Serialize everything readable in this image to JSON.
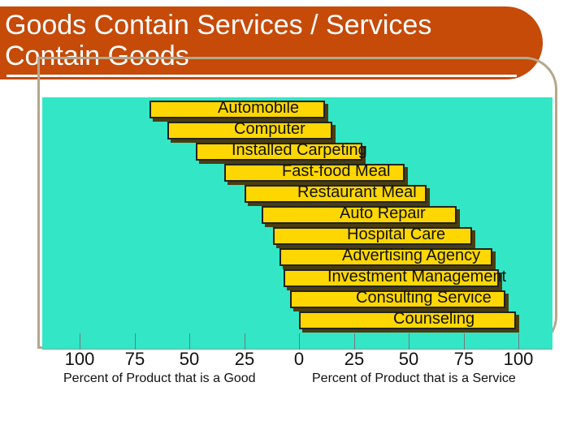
{
  "title": {
    "line1": "Goods Contain Services / Services",
    "line2": "Contain Goods"
  },
  "products": [
    {
      "label": "Automobile",
      "service_start": 68,
      "service_end": 12
    },
    {
      "label": "Computer",
      "service_start": 60,
      "service_end": 15
    },
    {
      "label": "Installed Carpeting",
      "service_start": 47,
      "service_end": 29
    },
    {
      "label": "Fast-food Meal",
      "service_start": 34,
      "service_end": 48
    },
    {
      "label": "Restaurant Meal",
      "service_start": 25,
      "service_end": 58
    },
    {
      "label": "Auto Repair",
      "service_start": 17,
      "service_end": 72
    },
    {
      "label": "Hospital Care",
      "service_start": 12,
      "service_end": 79
    },
    {
      "label": "Advertising Agency",
      "service_start": 9,
      "service_end": 88
    },
    {
      "label": "Investment Management",
      "service_start": 7,
      "service_end": 91
    },
    {
      "label": "Consulting Service",
      "service_start": 4,
      "service_end": 94
    },
    {
      "label": "Counseling",
      "service_start": 0,
      "service_end": 99
    }
  ],
  "axis": {
    "tick_labels": [
      "100",
      "75",
      "50",
      "25",
      "0",
      "25",
      "50",
      "75",
      "100"
    ],
    "left_caption": "Percent of Product that is a Good",
    "right_caption": "Percent of Product that is a Service"
  },
  "colors": {
    "title_bg": "#c64a08",
    "chart_bg": "#33e6c6",
    "bar_fill": "#ffd700"
  }
}
